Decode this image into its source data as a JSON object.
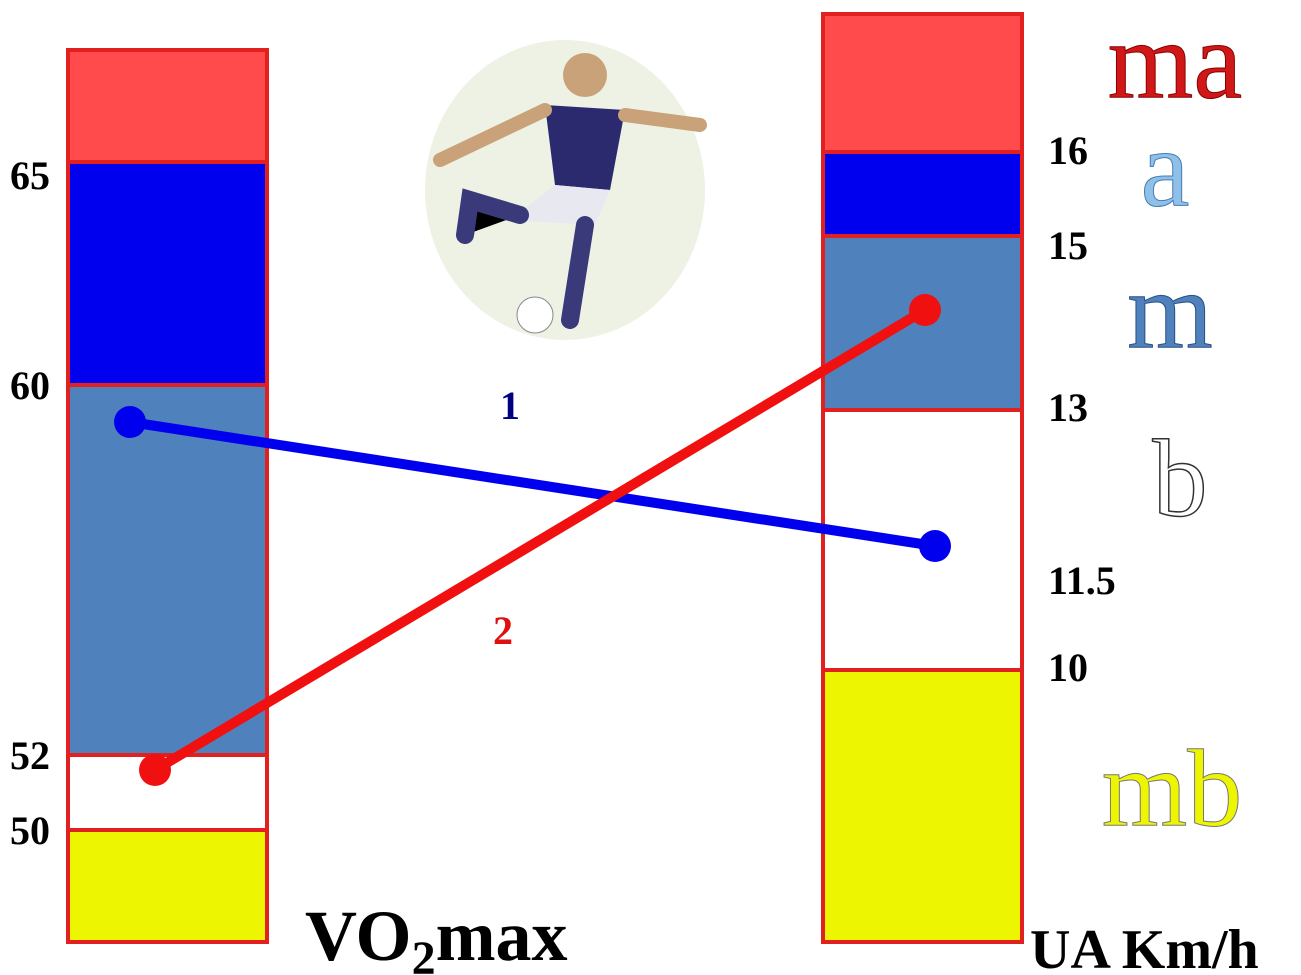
{
  "left_scale": {
    "ticks": [
      "65",
      "60",
      "52",
      "50"
    ],
    "label": {
      "main": "VO",
      "subscript": "2",
      "suffix": "max"
    }
  },
  "right_scale": {
    "ticks": [
      "16",
      "15",
      "13",
      "11.5",
      "10"
    ],
    "label": "UA Km/h"
  },
  "zones": [
    "ma",
    "a",
    "m",
    "b",
    "mb"
  ],
  "lines": [
    "1",
    "2"
  ]
}
